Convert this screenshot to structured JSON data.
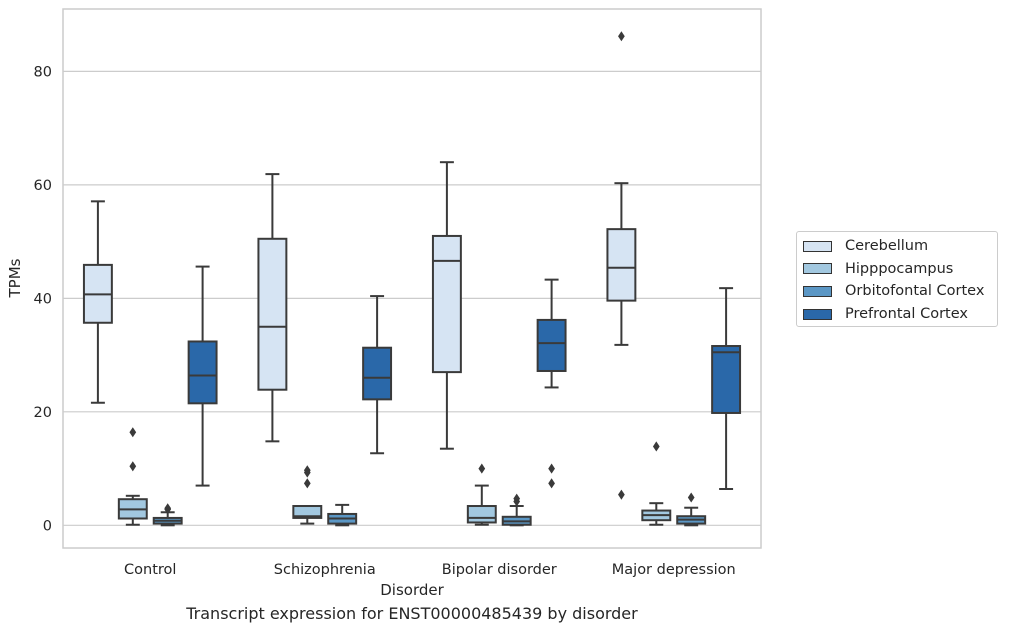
{
  "caption": "Transcript expression for ENST00000485439 by disorder",
  "chart_data": {
    "type": "box",
    "xlabel": "Disorder",
    "ylabel": "TPMs",
    "ylim": [
      -4,
      91
    ],
    "yticks": [
      0,
      20,
      40,
      60,
      80
    ],
    "grid": true,
    "legend_position": "right",
    "categories": [
      "Control",
      "Schizophrenia",
      "Bipolar disorder",
      "Major depression"
    ],
    "series": [
      {
        "name": "Cerebellum",
        "color": "#d6e4f3",
        "boxes": [
          {
            "whislo": 21.6,
            "q1": 35.7,
            "med": 40.7,
            "q3": 45.9,
            "whishi": 57.1,
            "fliers": []
          },
          {
            "whislo": 14.8,
            "q1": 23.9,
            "med": 35.0,
            "q3": 50.5,
            "whishi": 61.9,
            "fliers": []
          },
          {
            "whislo": 13.5,
            "q1": 27.0,
            "med": 46.6,
            "q3": 51.0,
            "whishi": 64.0,
            "fliers": []
          },
          {
            "whislo": 31.8,
            "q1": 39.6,
            "med": 45.4,
            "q3": 52.2,
            "whishi": 60.3,
            "fliers": [
              5.4,
              86.2
            ]
          }
        ]
      },
      {
        "name": "Hipppocampus",
        "color": "#a2c8e0",
        "boxes": [
          {
            "whislo": 0.1,
            "q1": 1.2,
            "med": 2.8,
            "q3": 4.6,
            "whishi": 5.2,
            "fliers": [
              10.4,
              16.4
            ]
          },
          {
            "whislo": 0.3,
            "q1": 1.3,
            "med": 1.6,
            "q3": 3.4,
            "whishi": 3.4,
            "fliers": [
              7.4,
              9.3,
              9.7
            ]
          },
          {
            "whislo": 0.1,
            "q1": 0.5,
            "med": 1.3,
            "q3": 3.4,
            "whishi": 7.0,
            "fliers": [
              10.0
            ]
          },
          {
            "whislo": 0.1,
            "q1": 0.9,
            "med": 1.8,
            "q3": 2.6,
            "whishi": 3.9,
            "fliers": [
              13.9
            ]
          }
        ]
      },
      {
        "name": "Orbitofontal Cortex",
        "color": "#5b97c5",
        "boxes": [
          {
            "whislo": 0.0,
            "q1": 0.3,
            "med": 0.8,
            "q3": 1.3,
            "whishi": 2.3,
            "fliers": [
              2.8,
              3.0
            ]
          },
          {
            "whislo": 0.0,
            "q1": 0.3,
            "med": 1.2,
            "q3": 2.0,
            "whishi": 3.6,
            "fliers": []
          },
          {
            "whislo": 0.0,
            "q1": 0.1,
            "med": 0.7,
            "q3": 1.5,
            "whishi": 3.4,
            "fliers": [
              4.2,
              4.7
            ]
          },
          {
            "whislo": 0.0,
            "q1": 0.3,
            "med": 1.0,
            "q3": 1.6,
            "whishi": 3.1,
            "fliers": [
              4.9
            ]
          }
        ]
      },
      {
        "name": "Prefrontal Cortex",
        "color": "#2a68a9",
        "boxes": [
          {
            "whislo": 7.0,
            "q1": 21.5,
            "med": 26.4,
            "q3": 32.4,
            "whishi": 45.6,
            "fliers": []
          },
          {
            "whislo": 12.7,
            "q1": 22.2,
            "med": 26.0,
            "q3": 31.3,
            "whishi": 40.4,
            "fliers": []
          },
          {
            "whislo": 24.3,
            "q1": 27.2,
            "med": 32.1,
            "q3": 36.2,
            "whishi": 43.3,
            "fliers": [
              7.4,
              10.0
            ]
          },
          {
            "whislo": 6.4,
            "q1": 19.8,
            "med": 30.5,
            "q3": 31.6,
            "whishi": 41.8,
            "fliers": []
          }
        ]
      }
    ]
  }
}
